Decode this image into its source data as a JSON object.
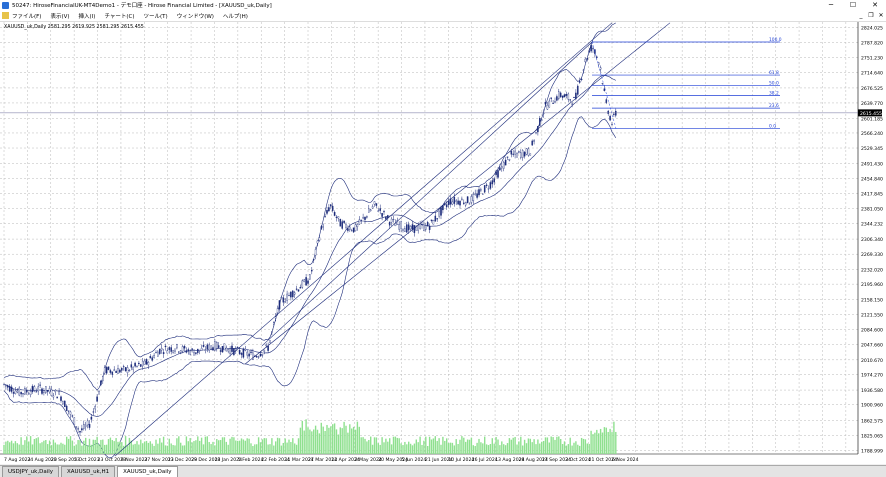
{
  "window": {
    "title": "50247: HiroseFinancialUK-MT4Demo1 - デモ口座 - Hirose Financial Limited - [XAUUSD_uk,Daily]",
    "minimize_label": "─",
    "maximize_label": "☐",
    "close_label": "✕"
  },
  "menu": {
    "items": [
      "ファイル(F)",
      "表示(V)",
      "挿入(I)",
      "チャート(C)",
      "ツール(T)",
      "ウィンドウ(W)",
      "ヘルプ(H)"
    ],
    "mdi_min": "_",
    "mdi_restore": "❐",
    "mdi_close": "✕"
  },
  "chart": {
    "info_label": "XAUUSD_uk,Daily  2581.295 2619.925 2581.295 2615.455",
    "current_price_label": "2615.455",
    "price_levels": [
      "2824.025",
      "2787.820",
      "2751.230",
      "2714.640",
      "2676.525",
      "2639.770",
      "2601.185",
      "2566.240",
      "2529.345",
      "2491.430",
      "2454.840",
      "2417.845",
      "2381.050",
      "2344.232",
      "2306.340",
      "2269.330",
      "2232.020",
      "2195.960",
      "2158.150",
      "2121.550",
      "2084.600",
      "2047.660",
      "2010.670",
      "1974.270",
      "1936.580",
      "1900.960",
      "1862.575",
      "1825.065",
      "1788.999"
    ],
    "date_labels": [
      "7 Aug 2023",
      "24 Aug 2023",
      "20 Sep 2023",
      "5 Oct 2023",
      "23 Oct 2023",
      "9 Nov 2023",
      "27 Nov 2023",
      "13 Dec 2023",
      "29 Dec 2023",
      "18 Jan 2024",
      "5 Feb 2024",
      "22 Feb 2024",
      "11 Mar 2024",
      "27 Mar 2024",
      "12 Apr 2024",
      "2 May 2024",
      "20 May 2024",
      "5 Jun 2024",
      "21 Jun 2024",
      "10 Jul 2024",
      "26 Jul 2024",
      "13 Aug 2024",
      "29 Aug 2024",
      "17 Sep 2024",
      "3 Oct 2024",
      "21 Oct 2024",
      "6 Nov 2024"
    ],
    "fib_levels": [
      {
        "label": "100.0",
        "price": 2789
      },
      {
        "label": "61.8",
        "price": 2708
      },
      {
        "label": "50.0",
        "price": 2683
      },
      {
        "label": "38.2",
        "price": 2658
      },
      {
        "label": "23.6",
        "price": 2627
      },
      {
        "label": "0.0",
        "price": 2577
      }
    ],
    "colors": {
      "bull": "#1c2b7a",
      "bear": "#1c2b7a",
      "band": "#1c2b7a",
      "fib": "#1f3fd6",
      "volume": "#8fe08f",
      "grid": "#b8b8b8"
    }
  },
  "tabs": [
    {
      "label": "USDJPY_uk,Daily",
      "active": false
    },
    {
      "label": "XAUUSD_uk,H1",
      "active": false
    },
    {
      "label": "XAUUSD_uk,Daily",
      "active": true
    }
  ]
}
